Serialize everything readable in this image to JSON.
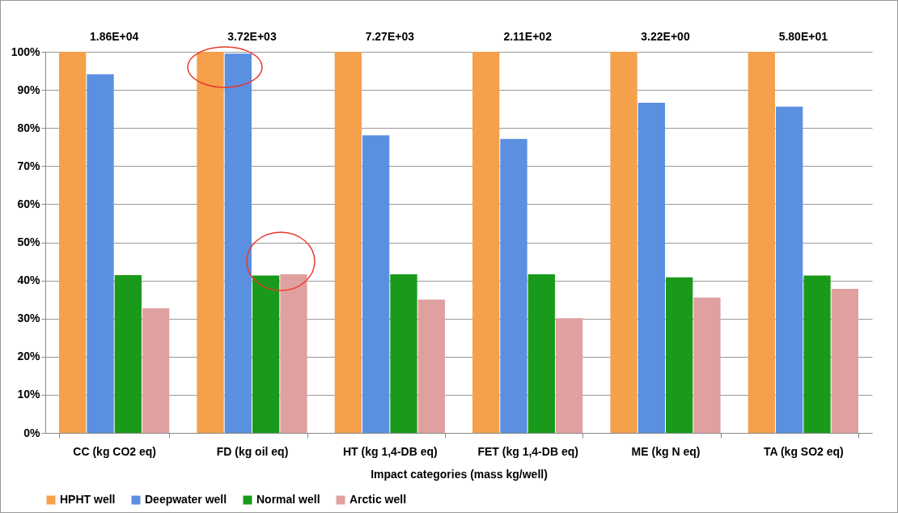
{
  "chart_data": {
    "type": "bar",
    "xlabel": "Impact categories (mass kg/well)",
    "categories": [
      "CC (kg CO2 eq)",
      "FD (kg oil eq)",
      "HT (kg 1,4-DB eq)",
      "FET (kg 1,4-DB eq)",
      "ME (kg N eq)",
      "TA (kg SO2 eq)"
    ],
    "series": [
      {
        "name": "HPHT well",
        "color": "#f5a04a",
        "values": [
          100,
          100,
          100,
          100,
          100,
          100
        ]
      },
      {
        "name": "Deepwater well",
        "color": "#5b8fe0",
        "values": [
          94.1,
          99.5,
          78.1,
          77.1,
          86.6,
          85.6
        ]
      },
      {
        "name": "Normal well",
        "color": "#1a9a1a",
        "values": [
          41.4,
          41.3,
          41.6,
          41.6,
          40.8,
          41.3
        ]
      },
      {
        "name": "Arctic well",
        "color": "#e0a0a0",
        "values": [
          32.7,
          41.6,
          35.0,
          30.1,
          35.5,
          37.8
        ]
      }
    ],
    "annotations": [
      "1.86E+04",
      "3.72E+03",
      "7.27E+03",
      "2.11E+02",
      "3.22E+00",
      "5.80E+01"
    ],
    "ylim": [
      0,
      100
    ],
    "yticks": [
      {
        "value": 0,
        "label": "0%"
      },
      {
        "value": 10,
        "label": "10%"
      },
      {
        "value": 20,
        "label": "20%"
      },
      {
        "value": 30,
        "label": "30%"
      },
      {
        "value": 40,
        "label": "40%"
      },
      {
        "value": 50,
        "label": "50%"
      },
      {
        "value": 60,
        "label": "60%"
      },
      {
        "value": 70,
        "label": "70%"
      },
      {
        "value": 80,
        "label": "80%"
      },
      {
        "value": 90,
        "label": "90%"
      },
      {
        "value": 100,
        "label": "100%"
      }
    ],
    "grid": "y",
    "legend": "bottom"
  }
}
